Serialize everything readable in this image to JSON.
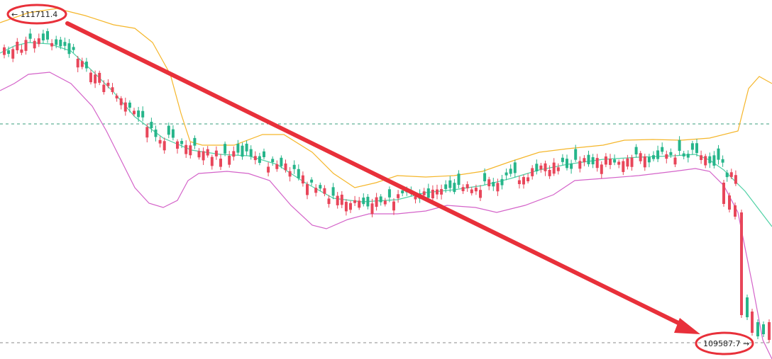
{
  "chart_data": {
    "type": "candlestick",
    "annotations": {
      "high_label": "← 111711.4",
      "low_label": "109587.7 →",
      "high_value": 111711.4,
      "low_value": 109587.7
    },
    "reference_lines": [
      "dashed-horizontal-upper",
      "dashed-horizontal-lower"
    ],
    "series": [
      {
        "kind": "candles"
      },
      {
        "kind": "bollinger-upper"
      },
      {
        "kind": "bollinger-middle"
      },
      {
        "kind": "bollinger-lower"
      }
    ],
    "grid": false,
    "legend": "none",
    "colors": {
      "up": "#26b58a",
      "down": "#e8465a",
      "upper_band": "#f5b62a",
      "middle_band": "#4fd1a5",
      "lower_band": "#d463c9",
      "arrow": "#e8303a",
      "dash": "#3a9e7e",
      "label_ring": "#e8303a"
    }
  }
}
